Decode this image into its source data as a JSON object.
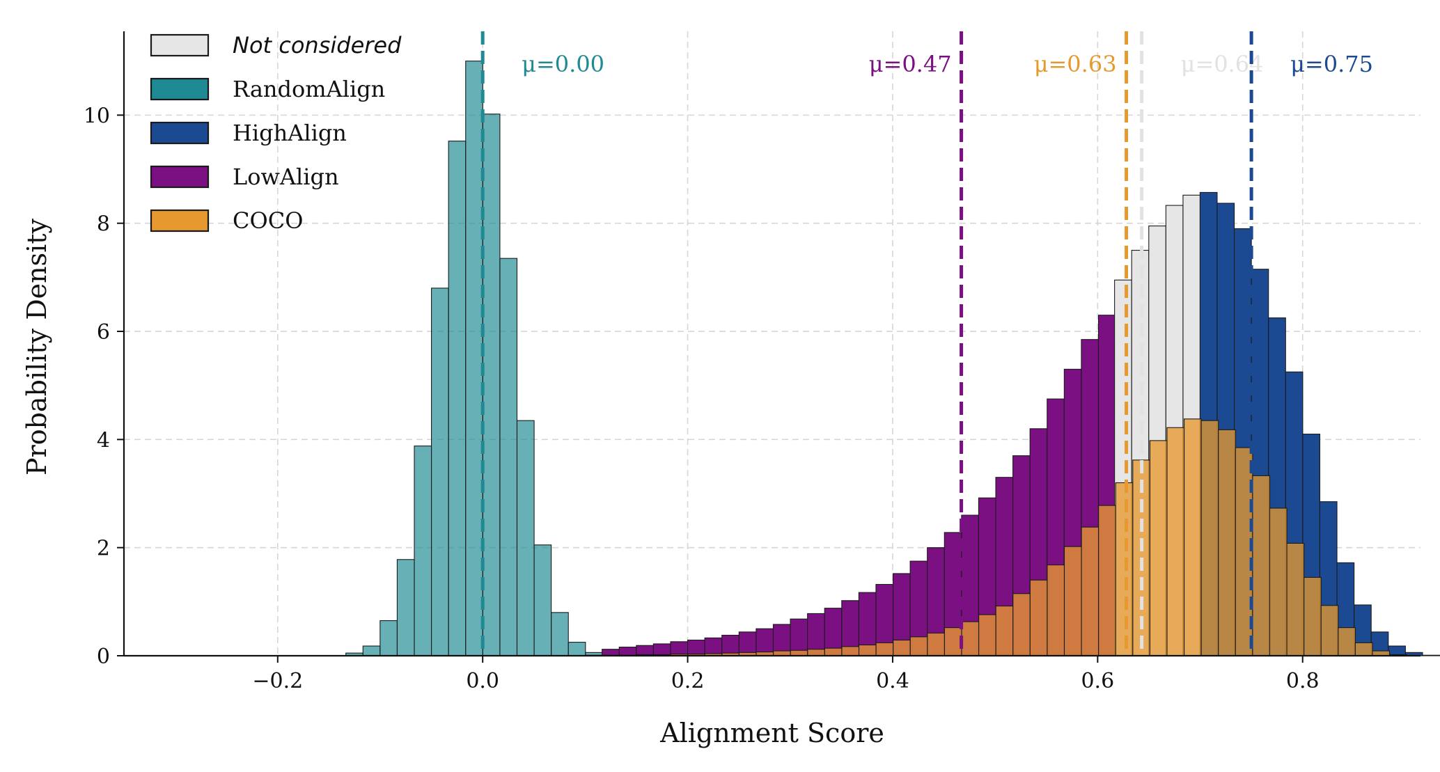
{
  "chart_data": {
    "type": "histogram",
    "xlabel": "Alignment Score",
    "ylabel": "Probability Density",
    "xlim": [
      -0.35,
      0.915
    ],
    "ylim": [
      0,
      11.55
    ],
    "bin_width": 0.0167,
    "xticks": [
      -0.2,
      0.0,
      0.2,
      0.4,
      0.6,
      0.8
    ],
    "xtick_labels": [
      "−0.2",
      "0.0",
      "0.2",
      "0.4",
      "0.6",
      "0.8"
    ],
    "yticks": [
      0,
      2,
      4,
      6,
      8,
      10
    ],
    "ytick_labels": [
      "0",
      "2",
      "4",
      "6",
      "8",
      "10"
    ],
    "grid": true,
    "legend_position": "top-left",
    "series": [
      {
        "key": "random",
        "name": "RandomAlign",
        "color": "#1f8a94",
        "alpha": 0.68,
        "x_start": -0.1335,
        "values": [
          0.05,
          0.18,
          0.65,
          1.78,
          3.88,
          6.8,
          9.52,
          11.0,
          10.02,
          7.35,
          4.35,
          2.05,
          0.8,
          0.25,
          0.06,
          0.02
        ]
      },
      {
        "key": "low",
        "name": "LowAlign",
        "color": "#7b1082",
        "alpha": 1,
        "x_start": 0.1165,
        "values": [
          0.12,
          0.16,
          0.19,
          0.22,
          0.26,
          0.29,
          0.33,
          0.38,
          0.44,
          0.5,
          0.58,
          0.68,
          0.78,
          0.88,
          1.02,
          1.17,
          1.32,
          1.52,
          1.75,
          2.0,
          2.28,
          2.6,
          2.92,
          3.3,
          3.7,
          4.2,
          4.75,
          5.3,
          5.85,
          6.3
        ]
      },
      {
        "key": "nc",
        "name": "Not considered",
        "color": "#e6e6e6",
        "alpha": 1,
        "x_start": 0.6165,
        "values": [
          6.95,
          7.5,
          7.95,
          8.33,
          8.52
        ]
      },
      {
        "key": "high",
        "name": "HighAlign",
        "color": "#1b4a93",
        "alpha": 1,
        "x_start": 0.6999,
        "values": [
          8.57,
          8.37,
          7.9,
          7.15,
          6.25,
          5.25,
          4.1,
          2.85,
          1.72,
          0.94,
          0.44,
          0.18,
          0.06,
          0.01
        ]
      },
      {
        "key": "coco",
        "name": "COCO",
        "color": "#e5992f",
        "alpha": 0.78,
        "x_start": 0.0999,
        "values": [
          0.01,
          0.01,
          0.01,
          0.02,
          0.02,
          0.03,
          0.03,
          0.04,
          0.05,
          0.06,
          0.07,
          0.09,
          0.1,
          0.12,
          0.14,
          0.17,
          0.2,
          0.24,
          0.29,
          0.35,
          0.42,
          0.52,
          0.63,
          0.76,
          0.92,
          1.15,
          1.4,
          1.68,
          2.02,
          2.38,
          2.78,
          3.2,
          3.62,
          3.98,
          4.22,
          4.38,
          4.35,
          4.18,
          3.85,
          3.33,
          2.73,
          2.08,
          1.45,
          0.93,
          0.52,
          0.24,
          0.09,
          0.02
        ]
      }
    ],
    "legend": [
      {
        "key": "nc",
        "label": "Not considered",
        "color": "#e6e6e6",
        "italic": true
      },
      {
        "key": "random",
        "label": "RandomAlign",
        "color": "#1f8a94",
        "italic": false
      },
      {
        "key": "high",
        "label": "HighAlign",
        "color": "#1b4a93",
        "italic": false
      },
      {
        "key": "low",
        "label": "LowAlign",
        "color": "#7b1082",
        "italic": false
      },
      {
        "key": "coco",
        "label": "COCO",
        "color": "#e5992f",
        "italic": false
      }
    ],
    "mean_lines": [
      {
        "key": "random",
        "x": 0.0,
        "label": "μ=0.00",
        "color": "#1f8a94",
        "side": "right"
      },
      {
        "key": "low",
        "x": 0.467,
        "label": "μ=0.47",
        "color": "#7b1082",
        "side": "left"
      },
      {
        "key": "coco",
        "x": 0.628,
        "label": "μ=0.63",
        "color": "#e5992f",
        "side": "left"
      },
      {
        "key": "nc",
        "x": 0.643,
        "label": "μ=0.64",
        "color": "#e2e2e2",
        "side": "right"
      },
      {
        "key": "high",
        "x": 0.75,
        "label": "μ=0.75",
        "color": "#1b4a93",
        "side": "right"
      }
    ]
  }
}
